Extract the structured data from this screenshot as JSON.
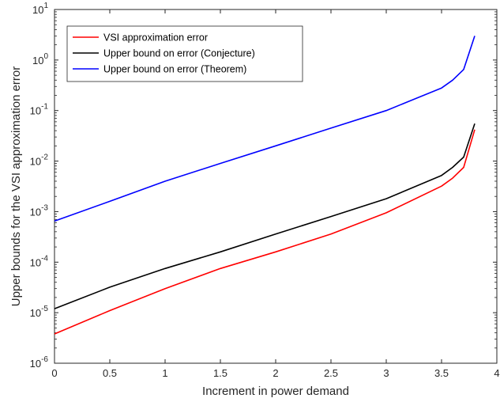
{
  "chart_data": {
    "type": "line",
    "xlabel": "Increment in power demand",
    "ylabel": "Upper bounds for the VSI approximation error",
    "xlim": [
      0,
      4
    ],
    "ylim": [
      1e-06,
      10
    ],
    "yscale": "log",
    "grid": false,
    "legend_position": "top-left",
    "x_ticks": [
      "0",
      "0.5",
      "1",
      "1.5",
      "2",
      "2.5",
      "3",
      "3.5",
      "4"
    ],
    "y_ticks": [
      {
        "base": "10",
        "exp": "-6"
      },
      {
        "base": "10",
        "exp": "-5"
      },
      {
        "base": "10",
        "exp": "-4"
      },
      {
        "base": "10",
        "exp": "-3"
      },
      {
        "base": "10",
        "exp": "-2"
      },
      {
        "base": "10",
        "exp": "-1"
      },
      {
        "base": "10",
        "exp": "0"
      },
      {
        "base": "10",
        "exp": "1"
      }
    ],
    "x": [
      0,
      0.5,
      1.0,
      1.5,
      2.0,
      2.5,
      3.0,
      3.5,
      3.6,
      3.7,
      3.8
    ],
    "series": [
      {
        "name": "VSI approximation error",
        "color": "#ff0000",
        "values": [
          3.8e-06,
          1.1e-05,
          3e-05,
          7.5e-05,
          0.00016,
          0.00036,
          0.00095,
          0.0032,
          0.0046,
          0.0075,
          0.042
        ]
      },
      {
        "name": "Upper bound on error (Conjecture)",
        "color": "#000000",
        "values": [
          1.2e-05,
          3.2e-05,
          7.5e-05,
          0.00016,
          0.00036,
          0.0008,
          0.0018,
          0.0052,
          0.0075,
          0.012,
          0.055
        ]
      },
      {
        "name": "Upper bound on error (Theorem)",
        "color": "#0000ff",
        "values": [
          0.00065,
          0.0016,
          0.004,
          0.009,
          0.02,
          0.045,
          0.1,
          0.28,
          0.4,
          0.65,
          3.0
        ]
      }
    ]
  }
}
